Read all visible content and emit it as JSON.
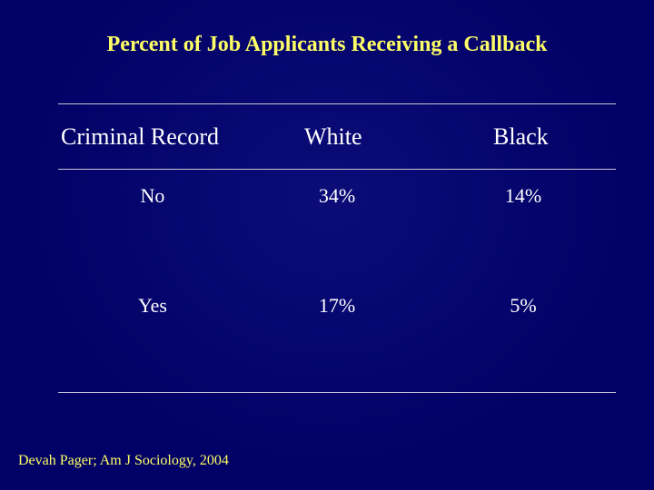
{
  "title": "Percent of Job Applicants Receiving a Callback",
  "table": {
    "headers": [
      "Criminal Record",
      "White",
      "Black"
    ],
    "rows": [
      {
        "label": "No",
        "white": "34%",
        "black": "14%"
      },
      {
        "label": "Yes",
        "white": "17%",
        "black": "5%"
      }
    ]
  },
  "source": "Devah Pager; Am J Sociology, 2004",
  "colors": {
    "background": "#000066",
    "title": "#ffff66",
    "text": "#ffffff",
    "source": "#ffff66"
  }
}
